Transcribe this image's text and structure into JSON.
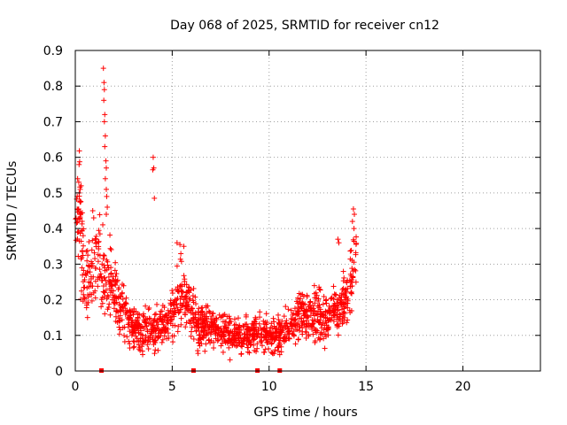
{
  "chart_data": {
    "type": "scatter",
    "title": "Day 068 of 2025, SRMTID for receiver cn12",
    "xlabel": "GPS time / hours",
    "ylabel": "SRMTID / TECUs",
    "xlim": [
      0,
      24
    ],
    "ylim": [
      0,
      0.9
    ],
    "x_ticks": [
      0,
      5,
      10,
      15,
      20
    ],
    "y_ticks": [
      0,
      0.1,
      0.2,
      0.3,
      0.4,
      0.5,
      0.6,
      0.7,
      0.8,
      0.9
    ],
    "x_tick_labels": [
      "0",
      "5",
      "10",
      "15",
      "20"
    ],
    "y_tick_labels": [
      "0",
      "0.1",
      "0.2",
      "0.3",
      "0.4",
      "0.5",
      "0.6",
      "0.7",
      "0.8",
      "0.9"
    ],
    "grid": true,
    "marker": "+",
    "color": "#ff0000",
    "profile": [
      [
        0.0,
        0.4
      ],
      [
        0.2,
        0.48
      ],
      [
        0.4,
        0.3
      ],
      [
        0.6,
        0.26
      ],
      [
        0.9,
        0.3
      ],
      [
        1.2,
        0.3
      ],
      [
        1.5,
        0.27
      ],
      [
        1.8,
        0.25
      ],
      [
        2.1,
        0.22
      ],
      [
        2.5,
        0.16
      ],
      [
        3.0,
        0.12
      ],
      [
        3.5,
        0.11
      ],
      [
        4.0,
        0.12
      ],
      [
        4.5,
        0.14
      ],
      [
        5.0,
        0.16
      ],
      [
        5.5,
        0.24
      ],
      [
        6.0,
        0.16
      ],
      [
        6.5,
        0.13
      ],
      [
        7.0,
        0.12
      ],
      [
        7.5,
        0.11
      ],
      [
        8.0,
        0.1
      ],
      [
        8.5,
        0.1
      ],
      [
        9.0,
        0.1
      ],
      [
        9.5,
        0.11
      ],
      [
        10.0,
        0.1
      ],
      [
        10.5,
        0.1
      ],
      [
        11.0,
        0.12
      ],
      [
        11.5,
        0.15
      ],
      [
        12.0,
        0.16
      ],
      [
        12.5,
        0.15
      ],
      [
        13.0,
        0.15
      ],
      [
        13.5,
        0.17
      ],
      [
        14.0,
        0.21
      ],
      [
        14.5,
        0.32
      ]
    ],
    "data_span": [
      0.0,
      14.5
    ],
    "spike_points": [
      {
        "x": 1.45,
        "y": 0.85
      },
      {
        "x": 1.48,
        "y": 0.81
      },
      {
        "x": 1.5,
        "y": 0.79
      },
      {
        "x": 1.47,
        "y": 0.76
      },
      {
        "x": 1.52,
        "y": 0.72
      },
      {
        "x": 1.5,
        "y": 0.7
      },
      {
        "x": 1.55,
        "y": 0.66
      },
      {
        "x": 1.52,
        "y": 0.63
      },
      {
        "x": 1.58,
        "y": 0.59
      },
      {
        "x": 1.6,
        "y": 0.57
      },
      {
        "x": 1.55,
        "y": 0.54
      },
      {
        "x": 1.6,
        "y": 0.51
      },
      {
        "x": 1.62,
        "y": 0.49
      },
      {
        "x": 1.65,
        "y": 0.46
      },
      {
        "x": 1.6,
        "y": 0.44
      },
      {
        "x": 4.02,
        "y": 0.6
      },
      {
        "x": 4.05,
        "y": 0.57
      },
      {
        "x": 4.0,
        "y": 0.565
      },
      {
        "x": 4.08,
        "y": 0.485
      },
      {
        "x": 0.12,
        "y": 0.54
      },
      {
        "x": 0.18,
        "y": 0.53
      },
      {
        "x": 0.25,
        "y": 0.51
      },
      {
        "x": 0.2,
        "y": 0.5
      },
      {
        "x": 0.1,
        "y": 0.49
      },
      {
        "x": 0.3,
        "y": 0.52
      },
      {
        "x": 0.9,
        "y": 0.45
      },
      {
        "x": 0.95,
        "y": 0.43
      },
      {
        "x": 14.35,
        "y": 0.455
      },
      {
        "x": 14.4,
        "y": 0.44
      },
      {
        "x": 14.3,
        "y": 0.42
      },
      {
        "x": 14.38,
        "y": 0.4
      },
      {
        "x": 13.55,
        "y": 0.37
      },
      {
        "x": 13.6,
        "y": 0.36
      },
      {
        "x": 5.25,
        "y": 0.36
      },
      {
        "x": 5.4,
        "y": 0.355
      },
      {
        "x": 5.6,
        "y": 0.35
      }
    ],
    "gap_markers_x": [
      1.35,
      6.1,
      9.4,
      10.55
    ]
  }
}
